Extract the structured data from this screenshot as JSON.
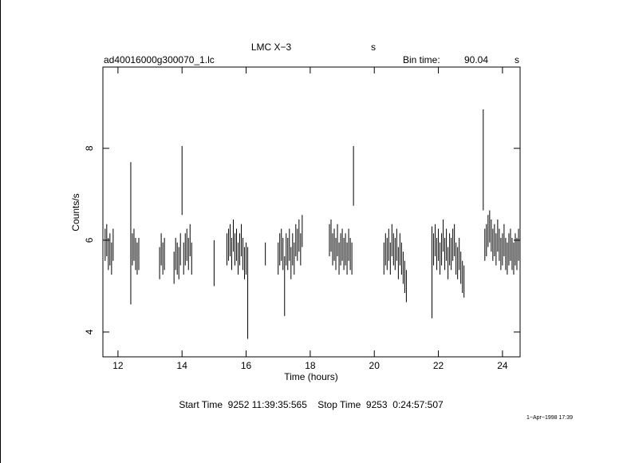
{
  "chart_data": {
    "type": "errorbar",
    "title": "LMC X−3",
    "title_note": "s",
    "file_name": "ad40016000g300070_1.lc",
    "bin_time_label": "Bin time:",
    "bin_time": "90.04",
    "bin_time_unit": "s",
    "xlabel": "Time (hours)",
    "ylabel": "Counts/s",
    "footer": "Start Time  9252 11:39:35:565    Stop Time  9253  0:24:57:507",
    "date_stamp": "1−Apr−1998 17:39",
    "color": "#000000",
    "xlim": [
      11.53,
      24.55
    ],
    "ylim": [
      3.46,
      9.77
    ],
    "xticks": [
      12,
      14,
      16,
      18,
      20,
      22,
      24
    ],
    "yticks": [
      4,
      6,
      8
    ],
    "x": [
      11.6,
      11.65,
      11.7,
      11.75,
      11.8,
      11.85,
      12.4,
      12.45,
      12.5,
      12.55,
      12.6,
      12.65,
      13.3,
      13.35,
      13.4,
      13.45,
      13.75,
      13.8,
      13.85,
      13.9,
      13.95,
      14.0,
      14.05,
      14.1,
      14.15,
      14.2,
      14.25,
      14.3,
      15.0,
      15.4,
      15.45,
      15.5,
      15.55,
      15.6,
      15.65,
      15.7,
      15.75,
      15.8,
      15.85,
      15.9,
      15.95,
      16.0,
      16.05,
      16.6,
      17.0,
      17.05,
      17.1,
      17.15,
      17.2,
      17.25,
      17.3,
      17.35,
      17.4,
      17.45,
      17.5,
      17.55,
      17.6,
      17.65,
      17.7,
      17.75,
      18.6,
      18.65,
      18.7,
      18.75,
      18.8,
      18.85,
      18.9,
      18.95,
      19.0,
      19.05,
      19.1,
      19.15,
      19.2,
      19.25,
      19.3,
      19.35,
      20.3,
      20.35,
      20.4,
      20.45,
      20.5,
      20.55,
      20.6,
      20.65,
      20.7,
      20.75,
      20.8,
      20.85,
      20.9,
      20.95,
      21.0,
      21.8,
      21.85,
      21.9,
      21.95,
      22.0,
      22.05,
      22.1,
      22.15,
      22.2,
      22.25,
      22.3,
      22.35,
      22.4,
      22.45,
      22.5,
      22.55,
      22.6,
      22.65,
      22.7,
      22.75,
      22.8,
      23.4,
      23.45,
      23.5,
      23.55,
      23.6,
      23.65,
      23.7,
      23.75,
      23.8,
      23.85,
      23.9,
      23.95,
      24.0,
      24.05,
      24.1,
      24.15,
      24.2,
      24.25,
      24.3,
      24.35,
      24.4,
      24.45,
      24.5
    ],
    "values": [
      5.9,
      6.0,
      5.7,
      5.8,
      5.6,
      5.9,
      6.15,
      5.8,
      5.9,
      5.7,
      5.6,
      5.7,
      5.5,
      5.8,
      5.6,
      5.7,
      5.4,
      5.7,
      5.6,
      5.5,
      5.8,
      7.3,
      5.6,
      5.8,
      5.9,
      5.7,
      6.0,
      5.6,
      5.5,
      5.8,
      5.9,
      6.0,
      5.7,
      6.1,
      5.8,
      5.9,
      5.6,
      5.8,
      6.0,
      5.7,
      5.5,
      5.6,
      4.85,
      5.7,
      5.6,
      5.8,
      5.9,
      5.7,
      5.0,
      5.8,
      5.7,
      5.9,
      5.5,
      5.8,
      5.6,
      6.0,
      5.9,
      6.1,
      5.8,
      6.2,
      6.0,
      6.1,
      5.8,
      5.9,
      5.7,
      6.0,
      5.6,
      5.8,
      5.9,
      5.7,
      5.8,
      5.6,
      5.9,
      5.7,
      5.6,
      7.4,
      5.6,
      5.8,
      5.7,
      5.9,
      5.6,
      6.0,
      5.8,
      5.7,
      5.9,
      5.5,
      5.8,
      5.6,
      5.4,
      5.2,
      5.0,
      5.3,
      5.8,
      6.0,
      5.7,
      5.9,
      5.6,
      5.8,
      6.1,
      5.7,
      5.9,
      5.5,
      5.8,
      5.7,
      5.9,
      6.0,
      5.6,
      5.5,
      5.7,
      5.4,
      5.2,
      5.1,
      7.75,
      5.9,
      6.0,
      6.2,
      6.3,
      6.1,
      5.9,
      6.0,
      5.8,
      6.1,
      5.9,
      5.7,
      5.8,
      6.0,
      5.7,
      5.6,
      5.8,
      5.9,
      5.7,
      5.6,
      5.8,
      5.7,
      5.9
    ],
    "errors": [
      0.35,
      0.35,
      0.35,
      0.35,
      0.35,
      0.35,
      1.55,
      0.35,
      0.35,
      0.35,
      0.35,
      0.35,
      0.35,
      0.35,
      0.35,
      0.35,
      0.35,
      0.35,
      0.35,
      0.35,
      0.35,
      0.75,
      0.35,
      0.35,
      0.35,
      0.35,
      0.35,
      0.35,
      0.5,
      0.35,
      0.35,
      0.35,
      0.35,
      0.35,
      0.35,
      0.35,
      0.35,
      0.35,
      0.35,
      0.35,
      0.35,
      0.35,
      1.0,
      0.25,
      0.35,
      0.35,
      0.35,
      0.35,
      0.65,
      0.35,
      0.35,
      0.35,
      0.35,
      0.35,
      0.35,
      0.35,
      0.35,
      0.35,
      0.35,
      0.35,
      0.35,
      0.35,
      0.35,
      0.35,
      0.35,
      0.35,
      0.35,
      0.35,
      0.35,
      0.35,
      0.35,
      0.35,
      0.35,
      0.35,
      0.35,
      0.65,
      0.35,
      0.35,
      0.35,
      0.35,
      0.35,
      0.35,
      0.35,
      0.35,
      0.35,
      0.35,
      0.35,
      0.35,
      0.35,
      0.35,
      0.35,
      1.0,
      0.35,
      0.35,
      0.35,
      0.35,
      0.35,
      0.35,
      0.35,
      0.35,
      0.35,
      0.35,
      0.35,
      0.35,
      0.35,
      0.35,
      0.35,
      0.35,
      0.35,
      0.35,
      0.35,
      0.35,
      1.1,
      0.35,
      0.35,
      0.35,
      0.35,
      0.35,
      0.35,
      0.35,
      0.35,
      0.35,
      0.35,
      0.35,
      0.35,
      0.35,
      0.35,
      0.35,
      0.35,
      0.35,
      0.35,
      0.35,
      0.35,
      0.35,
      0.35
    ]
  }
}
